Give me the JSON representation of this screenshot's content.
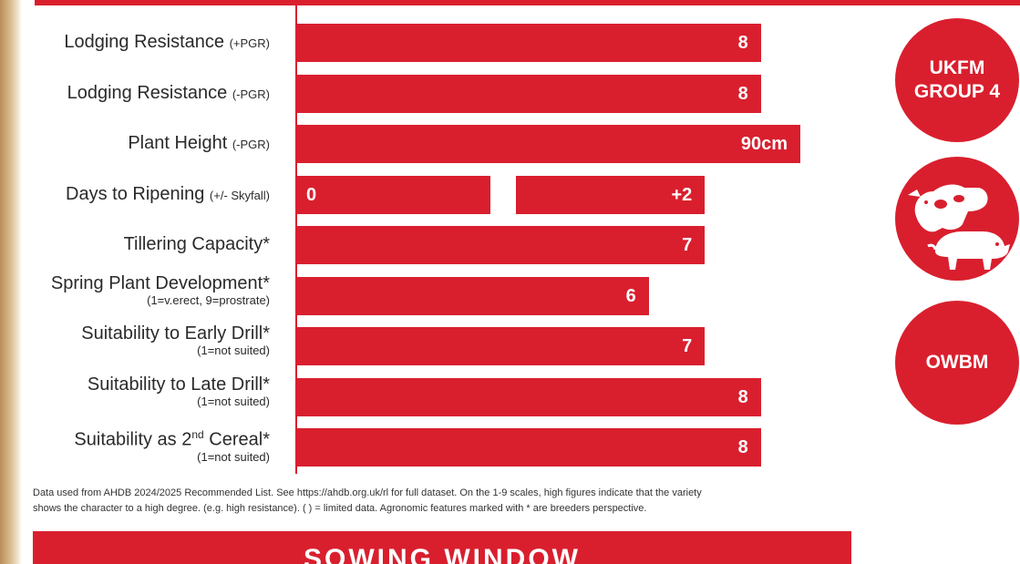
{
  "chart_data": {
    "type": "bar",
    "orientation": "horizontal",
    "scale_range": [
      0,
      9
    ],
    "rows": [
      {
        "label": "Lodging Resistance",
        "qualifier": "(+PGR)",
        "note": "",
        "value": 8,
        "display": "8"
      },
      {
        "label": "Lodging Resistance",
        "qualifier": "(-PGR)",
        "note": "",
        "value": 8,
        "display": "8"
      },
      {
        "label": "Plant Height",
        "qualifier": "(-PGR)",
        "note": "",
        "value": 90,
        "display": "90cm"
      },
      {
        "label": "Days to Ripening",
        "qualifier": "(+/- Skyfall)",
        "note": "",
        "value": 2,
        "display": "+2",
        "reference": 0,
        "reference_display": "0"
      },
      {
        "label": "Tillering Capacity*",
        "qualifier": "",
        "note": "",
        "value": 7,
        "display": "7"
      },
      {
        "label": "Spring Plant Development*",
        "qualifier": "",
        "note": "(1=v.erect, 9=prostrate)",
        "value": 6,
        "display": "6"
      },
      {
        "label": "Suitability to Early Drill*",
        "qualifier": "",
        "note": "(1=not suited)",
        "value": 7,
        "display": "7"
      },
      {
        "label": "Suitability to Late Drill*",
        "qualifier": "",
        "note": "(1=not suited)",
        "value": 8,
        "display": "8"
      },
      {
        "label": "Suitability as 2nd Cereal*",
        "qualifier": "",
        "note": "(1=not suited)",
        "value": 8,
        "display": "8"
      }
    ]
  },
  "badges": {
    "ukfm": "UKFM\nGROUP 4",
    "livestock_icon": "cow-and-pig-icon",
    "owbm": "OWBM"
  },
  "footnote": {
    "line1": "Data used from AHDB 2024/2025 Recommended List. See https://ahdb.org.uk/rl for full dataset. On the 1-9 scales, high figures indicate that the variety",
    "line2": "shows the character to a high degree.  (e.g. high resistance). ( ) = limited data. Agronomic features marked with * are breeders perspective."
  },
  "sowing_window": {
    "title": "SOWING WINDOW"
  },
  "colors": {
    "accent": "#d91f2e",
    "text": "#2a2a2a"
  }
}
